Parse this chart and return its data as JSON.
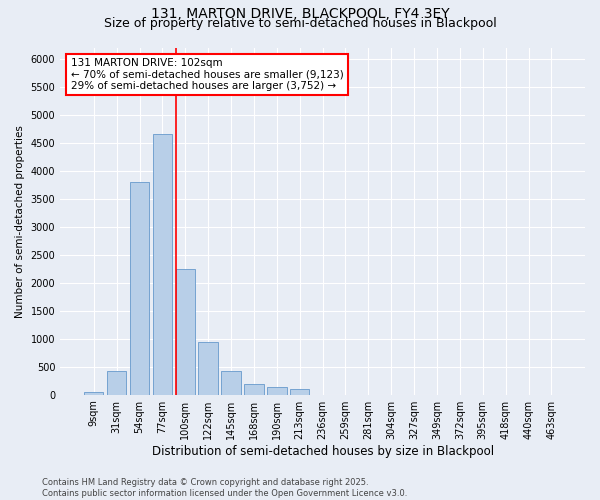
{
  "title1": "131, MARTON DRIVE, BLACKPOOL, FY4 3EY",
  "title2": "Size of property relative to semi-detached houses in Blackpool",
  "xlabel": "Distribution of semi-detached houses by size in Blackpool",
  "ylabel": "Number of semi-detached properties",
  "categories": [
    "9sqm",
    "31sqm",
    "54sqm",
    "77sqm",
    "100sqm",
    "122sqm",
    "145sqm",
    "168sqm",
    "190sqm",
    "213sqm",
    "236sqm",
    "259sqm",
    "281sqm",
    "304sqm",
    "327sqm",
    "349sqm",
    "372sqm",
    "395sqm",
    "418sqm",
    "440sqm",
    "463sqm"
  ],
  "values": [
    50,
    430,
    3800,
    4650,
    2250,
    950,
    420,
    200,
    130,
    110,
    0,
    0,
    0,
    0,
    0,
    0,
    0,
    0,
    0,
    0,
    0
  ],
  "bar_color": "#b8cfe8",
  "bar_edge_color": "#6699cc",
  "vline_color": "red",
  "vline_pos": 3.575,
  "annotation_text": "131 MARTON DRIVE: 102sqm\n← 70% of semi-detached houses are smaller (9,123)\n29% of semi-detached houses are larger (3,752) →",
  "annotation_box_color": "white",
  "annotation_box_edge_color": "red",
  "ylim": [
    0,
    6200
  ],
  "yticks": [
    0,
    500,
    1000,
    1500,
    2000,
    2500,
    3000,
    3500,
    4000,
    4500,
    5000,
    5500,
    6000
  ],
  "bg_color": "#e8edf5",
  "plot_bg_color": "#e8edf5",
  "footnote": "Contains HM Land Registry data © Crown copyright and database right 2025.\nContains public sector information licensed under the Open Government Licence v3.0.",
  "title1_fontsize": 10,
  "title2_fontsize": 9,
  "xlabel_fontsize": 8.5,
  "ylabel_fontsize": 7.5,
  "tick_fontsize": 7,
  "annot_fontsize": 7.5,
  "footnote_fontsize": 6
}
